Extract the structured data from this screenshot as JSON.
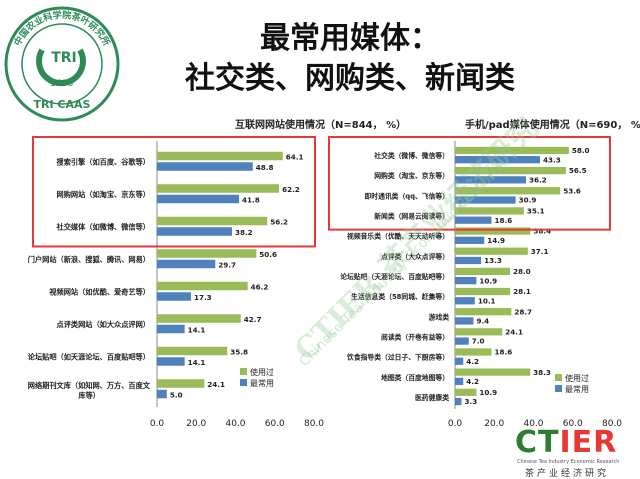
{
  "title_line1": "最常用媒体：",
  "title_line2": "社交类、网购类、新闻类",
  "logo": {
    "ring_text": "中国农业科学院茶叶研究所",
    "center": "TRI",
    "year": "1958",
    "bottom": "TRI CAAS"
  },
  "watermark": "CTIER 茶产业经济研究",
  "watermark_sub": "Chinese Tea Industry Economic Research",
  "bottom_logo": {
    "ct": "CT",
    "ier": "IER",
    "sub": "Chinese Tea Industry Economic Research",
    "cn": "茶产业经济研究"
  },
  "colors": {
    "used": "#9bbb59",
    "most": "#4f81bd",
    "highlight": "#e33b3b"
  },
  "chart_data": [
    {
      "type": "bar",
      "title": "互联网网站使用情况（N=844， %）",
      "categories": [
        "搜索引擎（如百度、谷歌等）",
        "网购网站（如淘宝、京东等）",
        "社交媒体（如微博、微信等）",
        "门户网站（新浪、搜狐、腾讯、网易）",
        "视频网站（如优酷、爱奇艺等）",
        "点评类网站（如大众点评网）",
        "论坛贴吧（如天涯论坛、百度贴吧等）",
        "网络期刊文库（如知网、万方、百度文库等）"
      ],
      "series": [
        {
          "name": "使用过",
          "values": [
            64.1,
            62.2,
            56.2,
            50.6,
            46.2,
            42.7,
            35.8,
            24.1
          ]
        },
        {
          "name": "最常用",
          "values": [
            48.8,
            41.8,
            38.2,
            29.7,
            17.3,
            14.1,
            14.1,
            5.0
          ]
        }
      ],
      "xlim": [
        0,
        80
      ],
      "ticks": [
        "0.0",
        "20.0",
        "40.0",
        "60.0",
        "80.0"
      ],
      "legend": "bottom-right"
    },
    {
      "type": "bar",
      "title": "手机/pad媒体使用情况（N=690， %）",
      "categories": [
        "社交类（微博、微信等）",
        "网购类（淘宝、京东等）",
        "即时通讯类（qq、飞信等）",
        "新闻类（网易云阅读等）",
        "视频音乐类（优酷、天天动听等）",
        "点评类（大众点评等）",
        "论坛贴吧（天涯论坛、百度贴吧等）",
        "生活信息类（58同城、赶集等）",
        "游戏类",
        "阅读类（开卷有益等）",
        "饮食指导类（过日子、下厨房等）",
        "地图类（百度地图等）",
        "医药健康类"
      ],
      "series": [
        {
          "name": "使用过",
          "values": [
            58.0,
            56.5,
            53.6,
            35.1,
            38.4,
            37.1,
            28.0,
            28.1,
            28.7,
            24.1,
            18.6,
            38.3,
            10.9
          ]
        },
        {
          "name": "最常用",
          "values": [
            43.3,
            36.2,
            30.9,
            18.6,
            14.9,
            13.3,
            10.9,
            10.1,
            9.4,
            7.0,
            4.2,
            4.2,
            3.3
          ]
        }
      ],
      "xlim": [
        0,
        80
      ],
      "ticks": [
        "0.0",
        "20.0",
        "40.0",
        "60.0",
        "80.0"
      ],
      "legend": "bottom-right"
    }
  ]
}
